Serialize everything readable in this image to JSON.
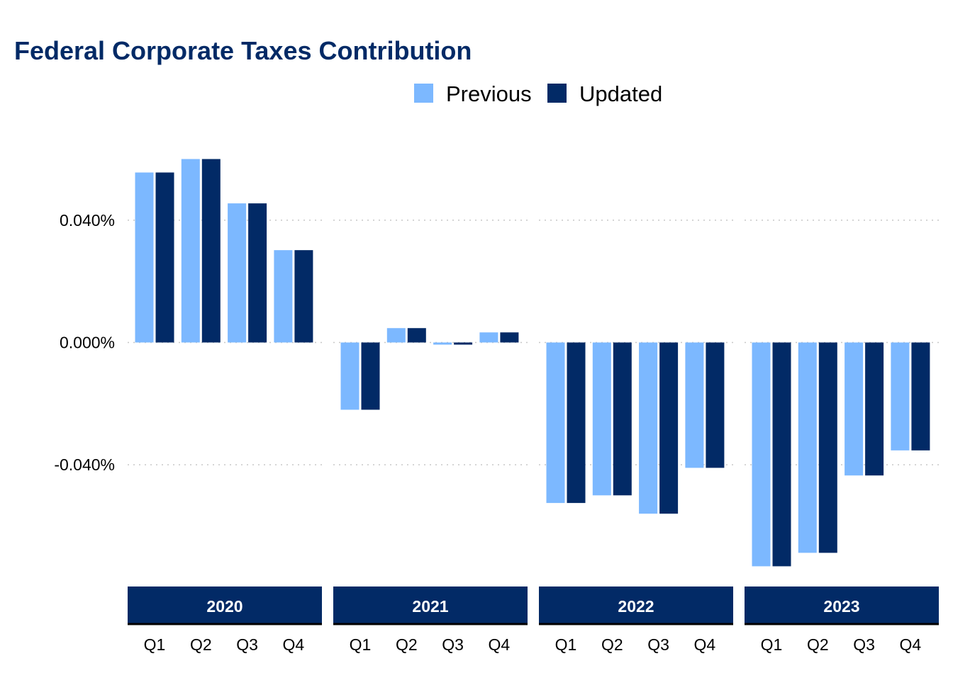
{
  "chart_data": {
    "type": "bar",
    "title": "Federal Corporate Taxes Contribution",
    "xlabel": "",
    "ylabel": "",
    "facets": [
      "2020",
      "2021",
      "2022",
      "2023"
    ],
    "categories": [
      "Q1",
      "Q2",
      "Q3",
      "Q4"
    ],
    "y_ticks": [
      {
        "value": 0.04,
        "label": "0.040%"
      },
      {
        "value": 0.0,
        "label": "0.000%"
      },
      {
        "value": -0.04,
        "label": "-0.040%"
      }
    ],
    "ylim": [
      -0.0775,
      0.068
    ],
    "grid": true,
    "legend_position": "top",
    "series": [
      {
        "name": "Previous",
        "color": "#7cb8ff",
        "values": [
          [
            0.0556,
            0.06,
            0.0455,
            0.0302
          ],
          [
            -0.022,
            0.0047,
            -0.0007,
            0.0033
          ],
          [
            -0.0525,
            -0.05,
            -0.056,
            -0.041
          ],
          [
            -0.0732,
            -0.0688,
            -0.0435,
            -0.0353
          ]
        ]
      },
      {
        "name": "Updated",
        "color": "#022a66",
        "values": [
          [
            0.0556,
            0.06,
            0.0455,
            0.0302
          ],
          [
            -0.022,
            0.0047,
            -0.0007,
            0.0033
          ],
          [
            -0.0525,
            -0.05,
            -0.056,
            -0.041
          ],
          [
            -0.0732,
            -0.0688,
            -0.0435,
            -0.0353
          ]
        ]
      }
    ],
    "colors": {
      "title": "#022a66",
      "strip": "#022a66",
      "strip_text": "#ffffff"
    }
  }
}
